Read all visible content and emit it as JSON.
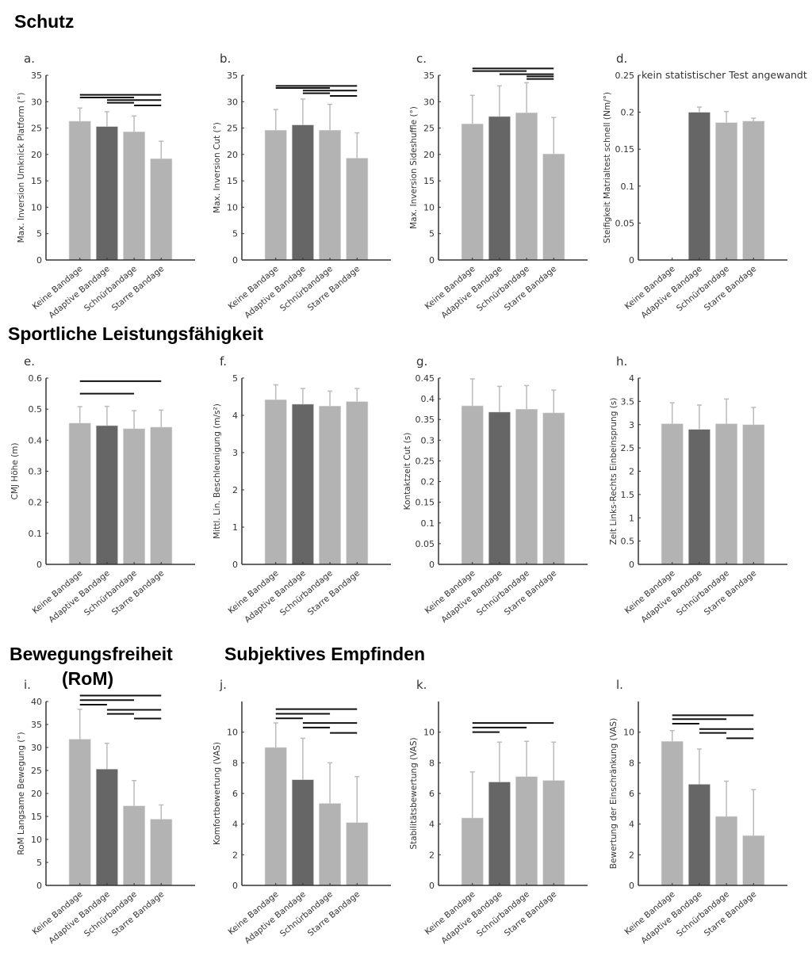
{
  "sections": {
    "schutz": "Schutz",
    "leistung": "Sportliche  Leistungsfähigkeit",
    "bewegung": "Bewegungsfreiheit",
    "bewegung_sub": "(RoM)",
    "subjektiv": "Subjektives Empfinden"
  },
  "colors": {
    "light_bar": "#b3b3b3",
    "dark_bar": "#666666",
    "axis": "#333333",
    "sig_line": "#111111"
  },
  "chart_data": [
    {
      "type": "bar",
      "panel": "a.",
      "ylabel": "Max. Inversion Umknick Platform (°)",
      "ylim": [
        0,
        35
      ],
      "yticks": [
        0,
        5,
        10,
        15,
        20,
        25,
        30,
        35
      ],
      "categories": [
        "Keine Bandage",
        "Adaptive Bandage",
        "Schnürbandage",
        "Starre Bandage"
      ],
      "values": [
        26.3,
        25.3,
        24.3,
        19.2
      ],
      "errors": [
        2.5,
        2.8,
        3.0,
        3.3
      ],
      "significance": [
        [
          1,
          4,
          31.3
        ],
        [
          1,
          3,
          30.8
        ],
        [
          2,
          4,
          30.3
        ],
        [
          2,
          3,
          29.8
        ],
        [
          3,
          4,
          29.3
        ]
      ]
    },
    {
      "type": "bar",
      "panel": "b.",
      "ylabel": "Max. Inversion Cut (°)",
      "ylim": [
        0,
        35
      ],
      "yticks": [
        0,
        5,
        10,
        15,
        20,
        25,
        30,
        35
      ],
      "categories": [
        "Keine Bandage",
        "Adaptive Bandage",
        "Schnürbandage",
        "Starre Bandage"
      ],
      "values": [
        24.6,
        25.6,
        24.6,
        19.3
      ],
      "errors": [
        3.9,
        4.9,
        4.9,
        4.8
      ],
      "significance": [
        [
          1,
          4,
          33.0
        ],
        [
          1,
          3,
          32.6
        ],
        [
          2,
          4,
          32.1
        ],
        [
          2,
          3,
          31.6
        ],
        [
          3,
          4,
          31.1
        ]
      ]
    },
    {
      "type": "bar",
      "panel": "c.",
      "ylabel": "Max. Inversion Sideshuffle (°)",
      "ylim": [
        0,
        35
      ],
      "yticks": [
        0,
        5,
        10,
        15,
        20,
        25,
        30,
        35
      ],
      "categories": [
        "Keine Bandage",
        "Adaptive Bandage",
        "Schnürbandage",
        "Starre Bandage"
      ],
      "values": [
        25.8,
        27.2,
        27.9,
        20.1
      ],
      "errors": [
        5.4,
        5.8,
        5.7,
        6.9
      ],
      "significance": [
        [
          1,
          4,
          36.3
        ],
        [
          1,
          3,
          35.8
        ],
        [
          2,
          4,
          35.2
        ],
        [
          3,
          4,
          34.8
        ],
        [
          3,
          4,
          34.3
        ]
      ]
    },
    {
      "type": "bar",
      "panel": "d.",
      "ylabel": "Steifigkeit Matrialtest schnell (Nm/°)",
      "ylim": [
        0,
        0.25
      ],
      "yticks": [
        0,
        0.05,
        0.1,
        0.15,
        0.2,
        0.25
      ],
      "note": "kein statistischer Test angewandt",
      "categories": [
        "Keine Bandage",
        "Adaptive Bandage",
        "Schnürbandage",
        "Starre Bandage"
      ],
      "values": [
        0,
        0.2,
        0.186,
        0.188
      ],
      "errors": [
        0,
        0.007,
        0.015,
        0.004
      ],
      "significance": []
    },
    {
      "type": "bar",
      "panel": "e.",
      "ylabel": "CMJ Höhe (m)",
      "ylim": [
        0,
        0.6
      ],
      "yticks": [
        0,
        0.1,
        0.2,
        0.3,
        0.4,
        0.5,
        0.6
      ],
      "categories": [
        "Keine Bandage",
        "Adaptive Bandage",
        "Schnürbandage",
        "Starre Bandage"
      ],
      "values": [
        0.455,
        0.447,
        0.437,
        0.442
      ],
      "errors": [
        0.053,
        0.062,
        0.058,
        0.055
      ],
      "significance": [
        [
          1,
          4,
          0.59
        ],
        [
          1,
          3,
          0.55
        ]
      ]
    },
    {
      "type": "bar",
      "panel": "f.",
      "ylabel": "Mittl. Lin. Beschleunigung (m/s²)",
      "ylim": [
        0,
        5
      ],
      "yticks": [
        0,
        1,
        2,
        3,
        4,
        5
      ],
      "categories": [
        "Keine Bandage",
        "Adaptive Bandage",
        "Schnürbandage",
        "Starre Bandage"
      ],
      "values": [
        4.42,
        4.3,
        4.25,
        4.37
      ],
      "errors": [
        0.4,
        0.42,
        0.4,
        0.35
      ],
      "significance": []
    },
    {
      "type": "bar",
      "panel": "g.",
      "ylabel": "Kontaktzeit Cut (s)",
      "ylim": [
        0,
        0.45
      ],
      "yticks": [
        0,
        0.05,
        0.1,
        0.15,
        0.2,
        0.25,
        0.3,
        0.35,
        0.4,
        0.45
      ],
      "categories": [
        "Keine Bandage",
        "Adaptive Bandage",
        "Schnürbandage",
        "Starre Bandage"
      ],
      "values": [
        0.383,
        0.368,
        0.375,
        0.366
      ],
      "errors": [
        0.065,
        0.062,
        0.057,
        0.055
      ],
      "significance": []
    },
    {
      "type": "bar",
      "panel": "h.",
      "ylabel": "Zeit Links-Rechts Einbeinsprung (s)",
      "ylim": [
        0,
        4
      ],
      "yticks": [
        0,
        0.5,
        1,
        1.5,
        2,
        2.5,
        3,
        3.5,
        4
      ],
      "categories": [
        "Keine Bandage",
        "Adaptive Bandage",
        "Schnürbandage",
        "Starre Bandage"
      ],
      "values": [
        3.02,
        2.9,
        3.02,
        3.0
      ],
      "errors": [
        0.45,
        0.52,
        0.53,
        0.37
      ],
      "significance": []
    },
    {
      "type": "bar",
      "panel": "i.",
      "ylabel": "RoM Langsame Bewegung (°)",
      "ylim": [
        0,
        40
      ],
      "yticks": [
        0,
        5,
        10,
        15,
        20,
        25,
        30,
        35,
        40
      ],
      "categories": [
        "Keine Bandage",
        "Adaptive Bandage",
        "Schnürbandage",
        "Starre Bandage"
      ],
      "values": [
        31.8,
        25.3,
        17.3,
        14.4
      ],
      "errors": [
        6.5,
        5.6,
        5.5,
        3.1
      ],
      "significance": [
        [
          1,
          4,
          41.3
        ],
        [
          1,
          3,
          40.3
        ],
        [
          1,
          2,
          39.3
        ],
        [
          2,
          4,
          38.2
        ],
        [
          2,
          3,
          37.3
        ],
        [
          3,
          4,
          36.3
        ]
      ]
    },
    {
      "type": "bar",
      "panel": "j.",
      "ylabel": "Komfortbewertung (VAS)",
      "ylim": [
        0,
        12
      ],
      "yticks": [
        0,
        2,
        4,
        6,
        8,
        10
      ],
      "categories": [
        "Keine Bandage",
        "Adaptive Bandage",
        "Schnürbandage",
        "Starre Bandage"
      ],
      "values": [
        9.0,
        6.9,
        5.35,
        4.1
      ],
      "errors": [
        1.6,
        2.7,
        2.65,
        3.0
      ],
      "significance": [
        [
          1,
          4,
          11.5
        ],
        [
          1,
          3,
          11.2
        ],
        [
          1,
          2,
          10.9
        ],
        [
          2,
          4,
          10.6
        ],
        [
          2,
          3,
          10.3
        ],
        [
          3,
          4,
          9.95
        ]
      ]
    },
    {
      "type": "bar",
      "panel": "k.",
      "ylabel": "Stabilitätsbewertung (VAS)",
      "ylim": [
        0,
        12
      ],
      "yticks": [
        0,
        2,
        4,
        6,
        8,
        10
      ],
      "categories": [
        "Keine Bandage",
        "Adaptive Bandage",
        "Schnürbandage",
        "Starre Bandage"
      ],
      "values": [
        4.4,
        6.75,
        7.1,
        6.85
      ],
      "errors": [
        3.0,
        2.6,
        2.3,
        2.5
      ],
      "significance": [
        [
          1,
          4,
          10.6
        ],
        [
          1,
          3,
          10.3
        ],
        [
          1,
          2,
          10.0
        ]
      ]
    },
    {
      "type": "bar",
      "panel": "l.",
      "ylabel": "Bewertung der Einschränkung (VAS)",
      "ylim": [
        0,
        12
      ],
      "yticks": [
        0,
        2,
        4,
        6,
        8,
        10
      ],
      "categories": [
        "Keine Bandage",
        "Adaptive Bandage",
        "Schnürbandage",
        "Starre Bandage"
      ],
      "values": [
        9.4,
        6.6,
        4.5,
        3.25
      ],
      "errors": [
        0.7,
        2.3,
        2.3,
        3.0
      ],
      "significance": [
        [
          1,
          4,
          11.1
        ],
        [
          1,
          3,
          10.85
        ],
        [
          1,
          2,
          10.55
        ],
        [
          2,
          4,
          10.2
        ],
        [
          2,
          3,
          9.95
        ],
        [
          3,
          4,
          9.6
        ]
      ]
    }
  ]
}
